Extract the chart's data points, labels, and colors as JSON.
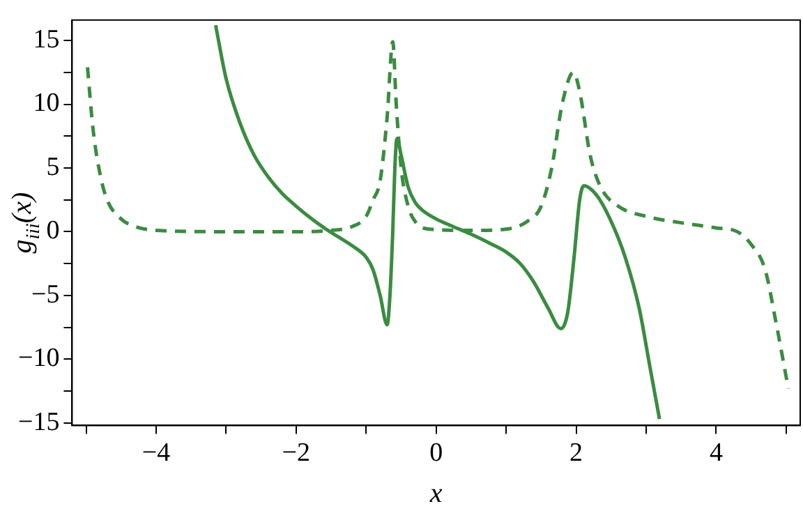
{
  "chart_data": {
    "type": "line",
    "xlabel": "x",
    "ylabel": "g$_{iii}$(x)",
    "grid": false,
    "legend": false,
    "marker": "none",
    "xlim": [
      -5.2,
      5.2
    ],
    "ylim": [
      -15.2,
      16.6
    ],
    "xticks": [
      {
        "value": -5,
        "label": null
      },
      -4,
      {
        "value": -3,
        "label": null
      },
      -2,
      {
        "value": -1,
        "label": null
      },
      0,
      {
        "value": 1,
        "label": null
      },
      2,
      {
        "value": 3,
        "label": null
      },
      4,
      {
        "value": 5,
        "label": null
      }
    ],
    "yticks": [
      -15,
      {
        "value": -12.5,
        "label": null
      },
      -10,
      {
        "value": -7.5,
        "label": null
      },
      -5,
      {
        "value": -2.5,
        "label": null
      },
      0,
      {
        "value": 2.5,
        "label": null
      },
      5,
      {
        "value": 7.5,
        "label": null
      },
      10,
      {
        "value": 12.5,
        "label": null
      },
      15
    ],
    "series": [
      {
        "color": "#3a8c40",
        "line_style": "solid",
        "x": [
          -3.15,
          -3.0,
          -2.8,
          -2.6,
          -2.4,
          -2.2,
          -2.0,
          -1.8,
          -1.6,
          -1.4,
          -1.2,
          -1.0,
          -0.9,
          -0.8,
          -0.7,
          -0.66,
          -0.62,
          -0.59,
          -0.56,
          -0.5,
          -0.4,
          -0.3,
          -0.2,
          0,
          0.2,
          0.5,
          0.8,
          1.0,
          1.2,
          1.4,
          1.6,
          1.78,
          1.88,
          1.97,
          2.05,
          2.11,
          2.3,
          2.5,
          2.7,
          2.9,
          3.05,
          3.19
        ],
        "values": [
          16.2,
          12,
          8.5,
          6,
          4.3,
          3,
          2,
          1.1,
          0.3,
          -0.4,
          -1.1,
          -2,
          -3,
          -5,
          -7.3,
          -5,
          0,
          5,
          7.3,
          6,
          3.5,
          2.3,
          1.7,
          1,
          0.5,
          -0.2,
          -1,
          -1.6,
          -2.5,
          -4,
          -6,
          -7.6,
          -6.3,
          -2,
          2.5,
          3.6,
          2.8,
          0.8,
          -2,
          -6,
          -10.5,
          -14.7
        ]
      },
      {
        "color": "#3a8c40",
        "line_style": "dashed",
        "x": [
          -4.98,
          -4.9,
          -4.8,
          -4.7,
          -4.5,
          -4.3,
          -4,
          -3,
          -2,
          -1.5,
          -1.2,
          -1.0,
          -0.9,
          -0.8,
          -0.7,
          -0.62,
          -0.57,
          -0.5,
          -0.4,
          -0.3,
          -0.1,
          0.5,
          1.0,
          1.3,
          1.5,
          1.65,
          1.8,
          1.96,
          2.05,
          2.2,
          2.35,
          2.6,
          3.0,
          3.5,
          4.0,
          4.3,
          4.5,
          4.7,
          4.85,
          5.03
        ],
        "values": [
          12.9,
          8,
          4.5,
          2.5,
          1,
          0.4,
          0.1,
          0,
          0,
          0.1,
          0.4,
          1.2,
          2.5,
          4,
          9,
          14.9,
          10,
          5,
          2,
          0.8,
          0.2,
          0.1,
          0.2,
          0.8,
          2,
          5,
          10,
          12.5,
          11,
          6,
          3.5,
          2,
          1.2,
          0.7,
          0.3,
          0,
          -1,
          -3,
          -7,
          -12.3
        ]
      }
    ]
  }
}
